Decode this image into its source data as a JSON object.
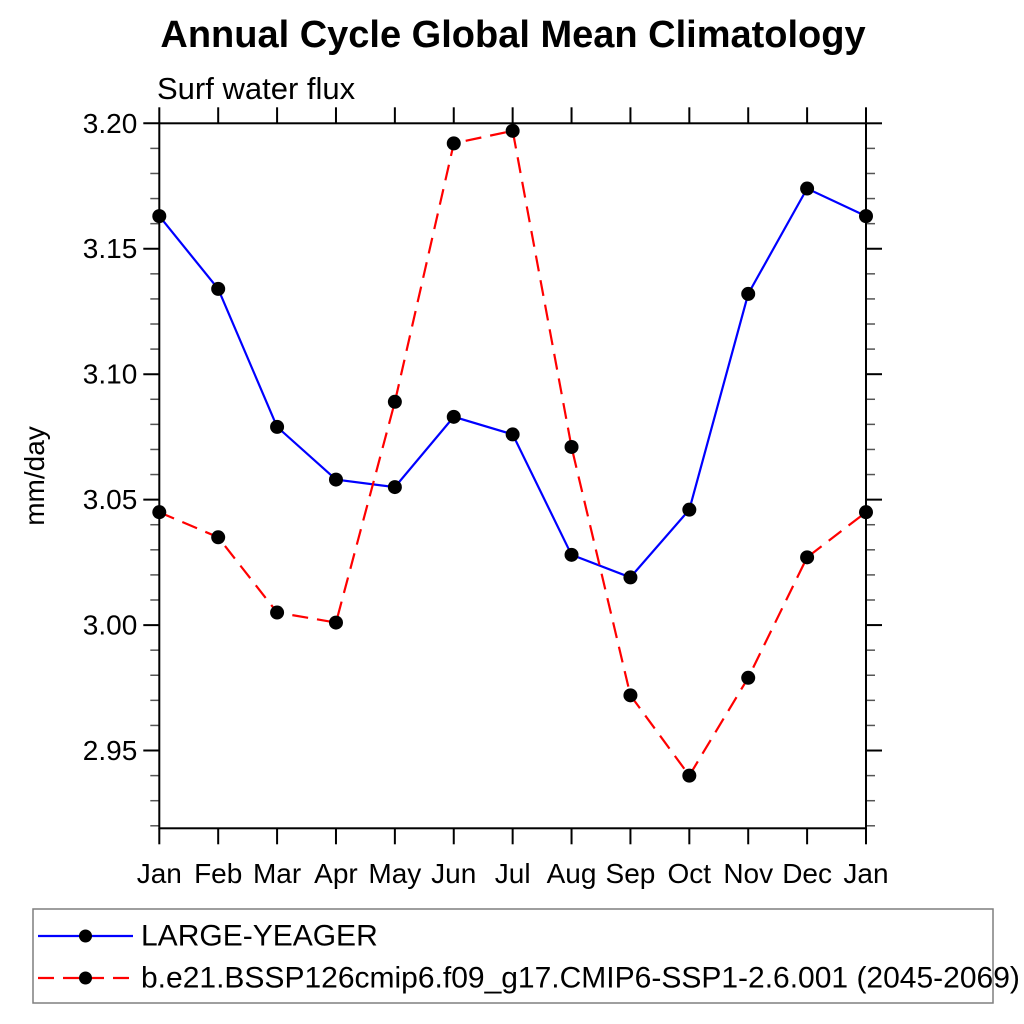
{
  "title": "Annual Cycle Global Mean Climatology",
  "subtitle": "Surf water flux",
  "chart_data": {
    "type": "line",
    "title": "Annual Cycle Global Mean Climatology",
    "subtitle": "Surf water flux",
    "xlabel": "",
    "ylabel": "mm/day",
    "categories": [
      "Jan",
      "Feb",
      "Mar",
      "Apr",
      "May",
      "Jun",
      "Jul",
      "Aug",
      "Sep",
      "Oct",
      "Nov",
      "Dec",
      "Jan"
    ],
    "ylim": [
      2.919,
      3.2
    ],
    "ytick_values": [
      2.95,
      3.0,
      3.05,
      3.1,
      3.15,
      3.2
    ],
    "ytick_labels": [
      "2.95",
      "3.00",
      "3.05",
      "3.10",
      "3.15",
      "3.20"
    ],
    "yminor_step": 0.01,
    "grid": false,
    "legend_position": "bottom",
    "frame_color": "#000000",
    "series": [
      {
        "name": "LARGE-YEAGER",
        "color": "#0000ff",
        "line_style": "solid",
        "marker": "filled-circle",
        "marker_color": "#000000",
        "values": [
          3.163,
          3.134,
          3.079,
          3.058,
          3.055,
          3.083,
          3.076,
          3.028,
          3.019,
          3.046,
          3.132,
          3.174,
          3.163
        ]
      },
      {
        "name": "b.e21.BSSP126cmip6.f09_g17.CMIP6-SSP1-2.6.001 (2045-2069)",
        "color": "#ff0000",
        "line_style": "dashed",
        "marker": "filled-circle",
        "marker_color": "#000000",
        "values": [
          3.045,
          3.035,
          3.005,
          3.001,
          3.089,
          3.192,
          3.197,
          3.071,
          2.972,
          2.94,
          2.979,
          3.027,
          3.045
        ]
      }
    ],
    "legend_border_color": "#7f7f7f"
  }
}
